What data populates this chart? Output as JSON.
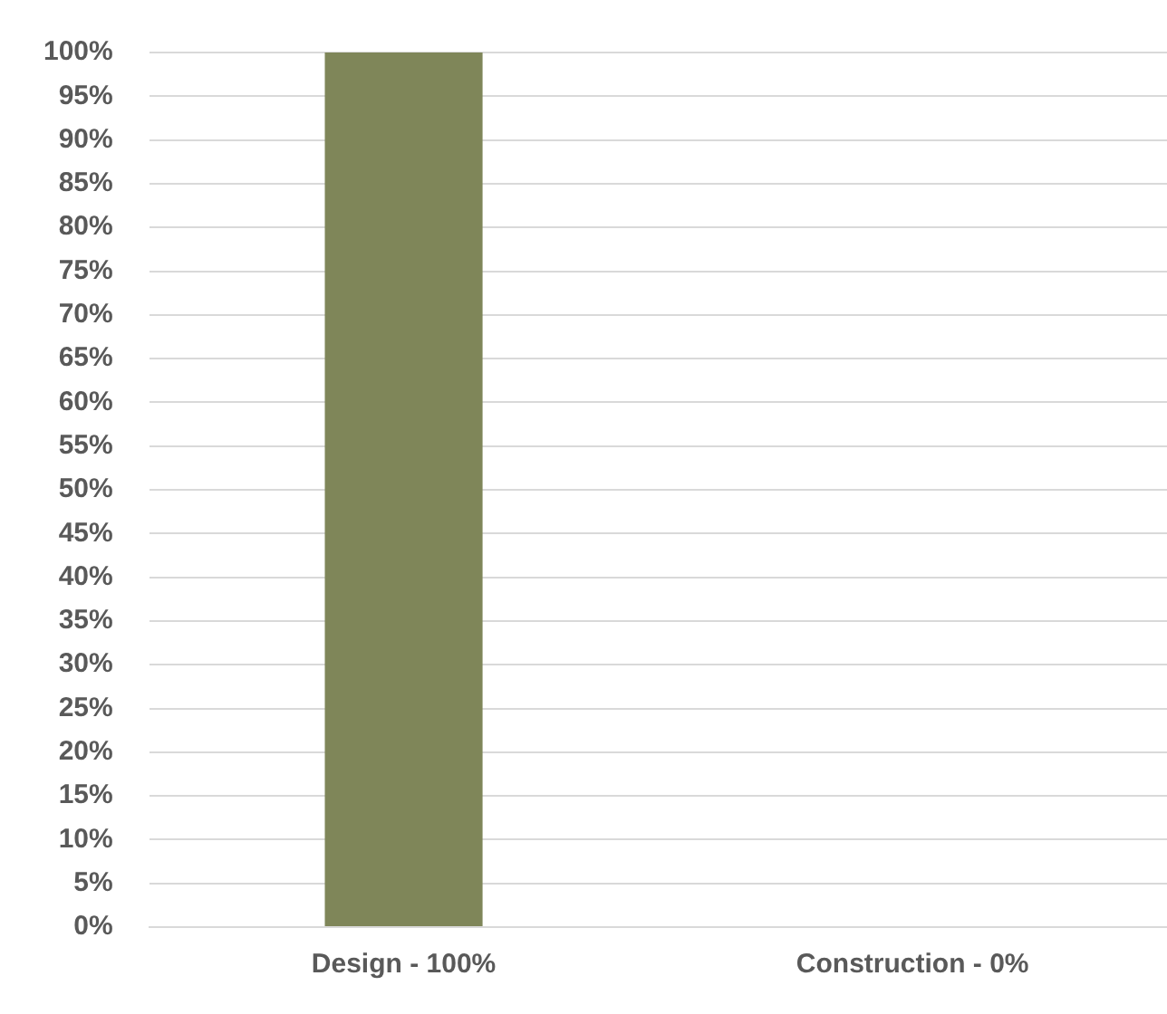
{
  "chart_data": {
    "type": "bar",
    "categories": [
      "Design - 100%",
      "Construction - 0%"
    ],
    "values": [
      100,
      0
    ],
    "color": "#7f8659",
    "ylim": [
      0,
      100
    ],
    "yticks": [
      {
        "value": 0,
        "label": "0%"
      },
      {
        "value": 5,
        "label": "5%"
      },
      {
        "value": 10,
        "label": "10%"
      },
      {
        "value": 15,
        "label": "15%"
      },
      {
        "value": 20,
        "label": "20%"
      },
      {
        "value": 25,
        "label": "25%"
      },
      {
        "value": 30,
        "label": "30%"
      },
      {
        "value": 35,
        "label": "35%"
      },
      {
        "value": 40,
        "label": "40%"
      },
      {
        "value": 45,
        "label": "45%"
      },
      {
        "value": 50,
        "label": "50%"
      },
      {
        "value": 55,
        "label": "55%"
      },
      {
        "value": 60,
        "label": "60%"
      },
      {
        "value": 65,
        "label": "65%"
      },
      {
        "value": 70,
        "label": "70%"
      },
      {
        "value": 75,
        "label": "75%"
      },
      {
        "value": 80,
        "label": "80%"
      },
      {
        "value": 85,
        "label": "85%"
      },
      {
        "value": 90,
        "label": "90%"
      },
      {
        "value": 95,
        "label": "95%"
      },
      {
        "value": 100,
        "label": "100%"
      }
    ],
    "grid": "y"
  }
}
